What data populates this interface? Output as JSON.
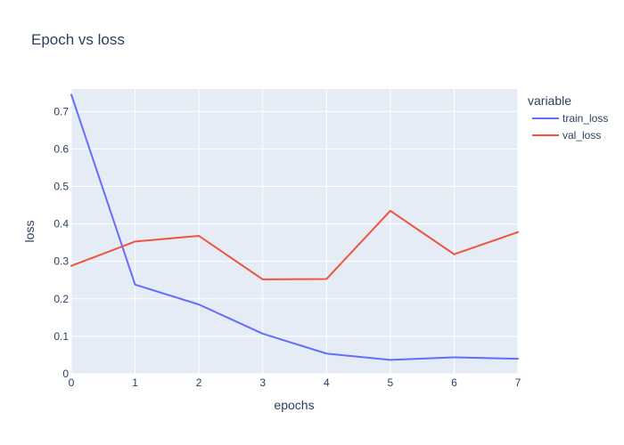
{
  "chart_data": {
    "type": "line",
    "title": "Epoch vs loss",
    "xlabel": "epochs",
    "ylabel": "loss",
    "x": [
      0,
      1,
      2,
      3,
      4,
      5,
      6,
      7
    ],
    "xlim": [
      0,
      7
    ],
    "ylim": [
      0,
      0.76
    ],
    "x_ticks": [
      0,
      1,
      2,
      3,
      4,
      5,
      6,
      7
    ],
    "y_ticks": [
      0,
      0.1,
      0.2,
      0.3,
      0.4,
      0.5,
      0.6,
      0.7
    ],
    "x_tick_labels": [
      "0",
      "1",
      "2",
      "3",
      "4",
      "5",
      "6",
      "7"
    ],
    "y_tick_labels": [
      "0",
      "0.1",
      "0.2",
      "0.3",
      "0.4",
      "0.5",
      "0.6",
      "0.7"
    ],
    "grid": true,
    "legend": {
      "title": "variable",
      "placement": "right"
    },
    "series": [
      {
        "name": "train_loss",
        "color": "#636efa",
        "values": [
          0.745,
          0.238,
          0.185,
          0.107,
          0.054,
          0.037,
          0.044,
          0.04
        ]
      },
      {
        "name": "val_loss",
        "color": "#ef553b",
        "values": [
          0.288,
          0.353,
          0.368,
          0.252,
          0.253,
          0.435,
          0.319,
          0.378
        ]
      }
    ]
  }
}
